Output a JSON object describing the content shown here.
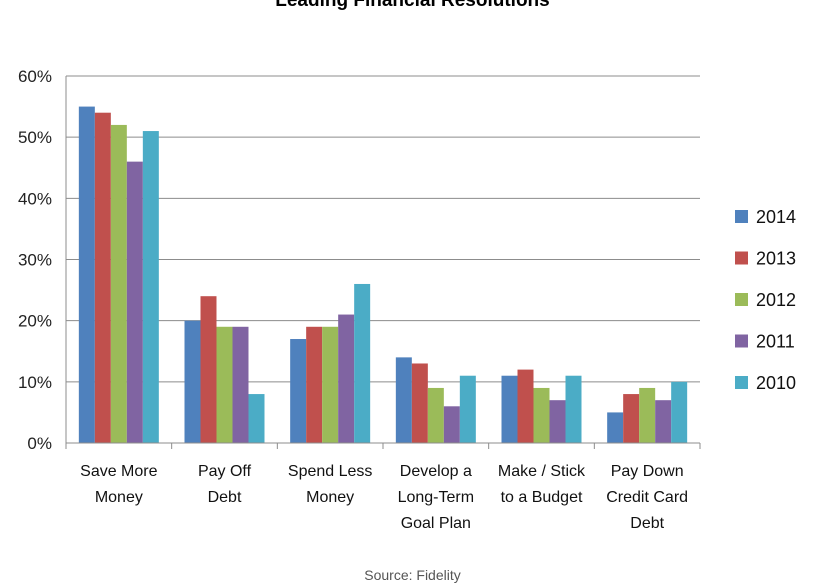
{
  "chart_data": {
    "type": "bar",
    "title": "Leading Financial Resolutions",
    "source": "Source: Fidelity",
    "categories": [
      [
        "Save More",
        "Money"
      ],
      [
        "Pay Off",
        "Debt"
      ],
      [
        "Spend Less",
        "Money"
      ],
      [
        "Develop a",
        "Long-Term",
        "Goal Plan"
      ],
      [
        "Make / Stick",
        "to a Budget"
      ],
      [
        "Pay Down",
        "Credit Card",
        "Debt"
      ]
    ],
    "series": [
      {
        "name": "2014",
        "color": "#4f81bd",
        "values": [
          55,
          20,
          17,
          14,
          11,
          5
        ]
      },
      {
        "name": "2013",
        "color": "#c0504d",
        "values": [
          54,
          24,
          19,
          13,
          12,
          8
        ]
      },
      {
        "name": "2012",
        "color": "#9bbb59",
        "values": [
          52,
          19,
          19,
          9,
          9,
          9
        ]
      },
      {
        "name": "2011",
        "color": "#8064a2",
        "values": [
          46,
          19,
          21,
          6,
          7,
          7
        ]
      },
      {
        "name": "2010",
        "color": "#4bacc6",
        "values": [
          51,
          8,
          26,
          11,
          11,
          10
        ]
      }
    ],
    "yticks": [
      "0%",
      "10%",
      "20%",
      "30%",
      "40%",
      "50%",
      "60%"
    ],
    "ylim": [
      0,
      60
    ],
    "grid": true,
    "legend": "right"
  }
}
